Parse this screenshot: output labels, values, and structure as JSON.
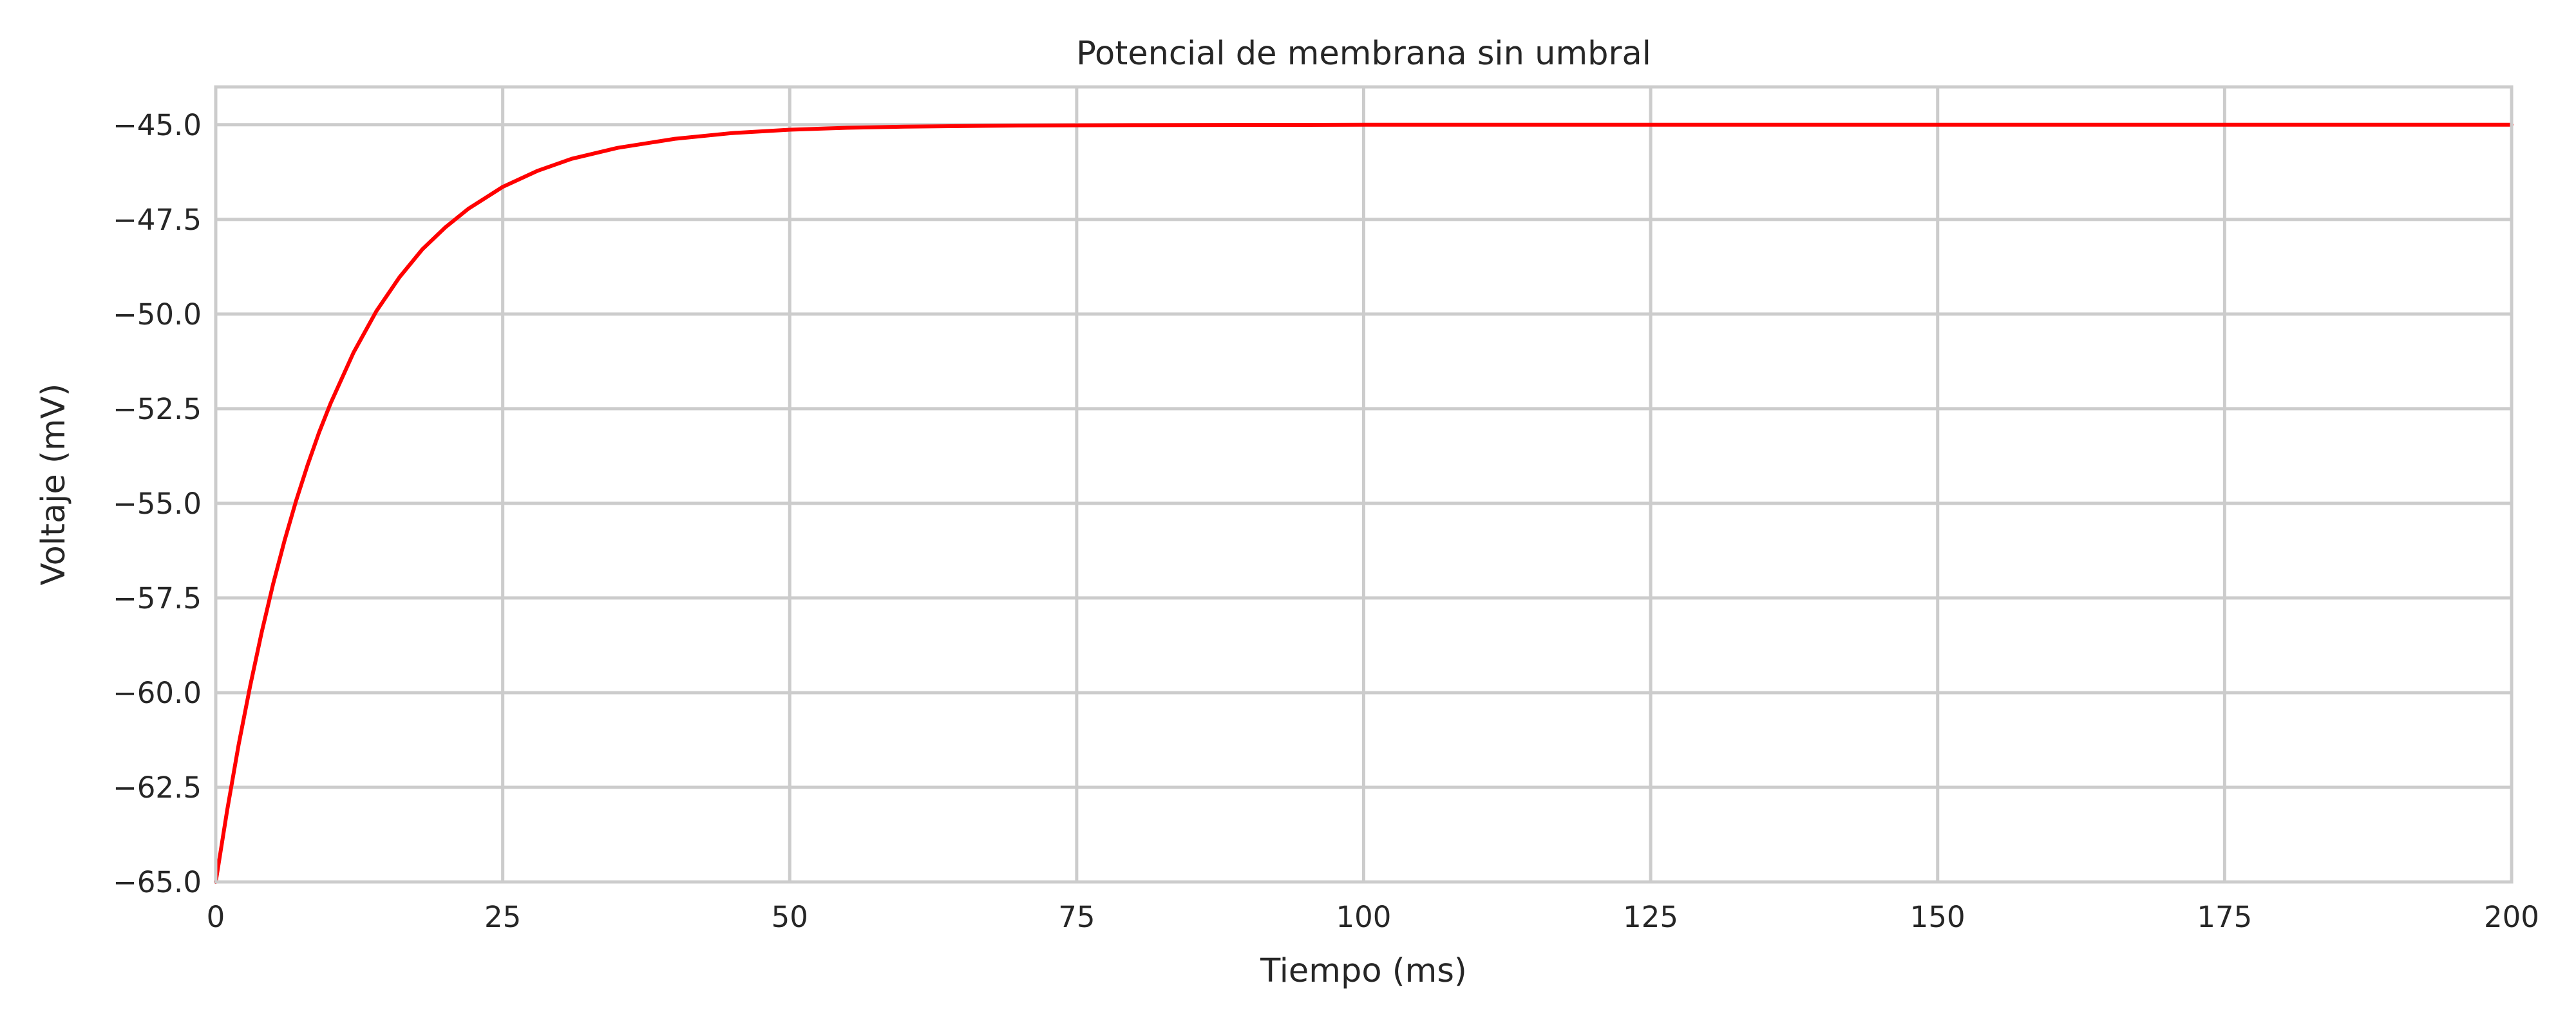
{
  "chart_data": {
    "type": "line",
    "title": "Potencial de membrana sin umbral",
    "xlabel": "Tiempo (ms)",
    "ylabel": "Voltaje (mV)",
    "xlim": [
      0,
      200
    ],
    "ylim": [
      -65,
      -44
    ],
    "x_ticks": [
      0,
      25,
      50,
      75,
      100,
      125,
      150,
      175,
      200
    ],
    "x_tick_labels": [
      "0",
      "25",
      "50",
      "75",
      "100",
      "125",
      "150",
      "175",
      "200"
    ],
    "y_ticks": [
      -45.0,
      -47.5,
      -50.0,
      -52.5,
      -55.0,
      -57.5,
      -60.0,
      -62.5,
      -65.0
    ],
    "y_tick_labels": [
      "−45.0",
      "−47.5",
      "−50.0",
      "−52.5",
      "−55.0",
      "−57.5",
      "−60.0",
      "−62.5",
      "−65.0"
    ],
    "grid": true,
    "series": [
      {
        "color": "#ff0000",
        "x": [
          0,
          1,
          2,
          3,
          4,
          5,
          6,
          7,
          8,
          9,
          10,
          12,
          14,
          16,
          18,
          20,
          22,
          25,
          28,
          31,
          35,
          40,
          45,
          50,
          55,
          60,
          70,
          80,
          100,
          125,
          150,
          175,
          200
        ],
        "y": [
          -65.0,
          -63.1,
          -61.37,
          -59.82,
          -58.41,
          -57.13,
          -55.98,
          -54.93,
          -53.99,
          -53.13,
          -52.36,
          -51.02,
          -49.92,
          -49.03,
          -48.29,
          -47.71,
          -47.22,
          -46.64,
          -46.22,
          -45.9,
          -45.61,
          -45.37,
          -45.22,
          -45.13,
          -45.08,
          -45.05,
          -45.02,
          -45.01,
          -45.0,
          -45.0,
          -45.0,
          -45.0,
          -45.0
        ]
      }
    ]
  }
}
